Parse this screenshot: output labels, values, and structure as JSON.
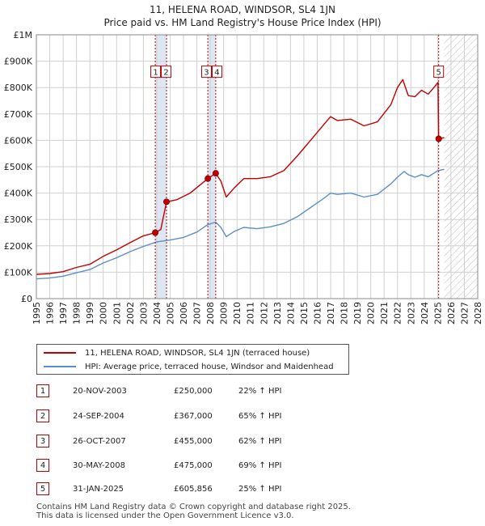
{
  "title_line1": "11, HELENA ROAD, WINDSOR, SL4 1JN",
  "title_line2": "Price paid vs. HM Land Registry's House Price Index (HPI)",
  "colors": {
    "property": "#c00000",
    "hpi": "#5b8fc7",
    "band": "#dde6f3",
    "marker": "#c00000"
  },
  "chart_data": {
    "type": "line",
    "title": "Price paid vs. HM Land Registry's House Price Index (HPI)",
    "xlabel": "",
    "ylabel": "",
    "xlim": [
      1995,
      2028
    ],
    "ylim": [
      0,
      1000000
    ],
    "y_ticks": [
      {
        "value": 0,
        "label": "£0"
      },
      {
        "value": 100000,
        "label": "£100K"
      },
      {
        "value": 200000,
        "label": "£200K"
      },
      {
        "value": 300000,
        "label": "£300K"
      },
      {
        "value": 400000,
        "label": "£400K"
      },
      {
        "value": 500000,
        "label": "£500K"
      },
      {
        "value": 600000,
        "label": "£600K"
      },
      {
        "value": 700000,
        "label": "£700K"
      },
      {
        "value": 800000,
        "label": "£800K"
      },
      {
        "value": 900000,
        "label": "£900K"
      },
      {
        "value": 1000000,
        "label": "£1M"
      }
    ],
    "x_ticks": [
      "1995",
      "1996",
      "1997",
      "1998",
      "1999",
      "2000",
      "2001",
      "2002",
      "2003",
      "2004",
      "2005",
      "2006",
      "2007",
      "2008",
      "2009",
      "2010",
      "2011",
      "2012",
      "2013",
      "2014",
      "2015",
      "2016",
      "2017",
      "2018",
      "2019",
      "2020",
      "2021",
      "2022",
      "2023",
      "2024",
      "2025",
      "2026",
      "2027",
      "2028"
    ],
    "grid": true,
    "forecast_hatch_from": 2025.5,
    "series": [
      {
        "name": "11, HELENA ROAD, WINDSOR, SL4 1JN (terraced house)",
        "points": [
          [
            1995.0,
            92000
          ],
          [
            1996.0,
            95000
          ],
          [
            1997.0,
            102000
          ],
          [
            1998.0,
            118000
          ],
          [
            1999.0,
            130000
          ],
          [
            2000.0,
            160000
          ],
          [
            2001.0,
            185000
          ],
          [
            2002.0,
            212000
          ],
          [
            2003.0,
            238000
          ],
          [
            2003.89,
            250000
          ],
          [
            2004.3,
            262000
          ],
          [
            2004.73,
            367000
          ],
          [
            2005.5,
            375000
          ],
          [
            2006.5,
            400000
          ],
          [
            2007.82,
            455000
          ],
          [
            2008.41,
            475000
          ],
          [
            2008.8,
            445000
          ],
          [
            2009.2,
            385000
          ],
          [
            2009.8,
            420000
          ],
          [
            2010.5,
            455000
          ],
          [
            2011.5,
            455000
          ],
          [
            2012.5,
            462000
          ],
          [
            2013.5,
            485000
          ],
          [
            2014.5,
            540000
          ],
          [
            2015.5,
            600000
          ],
          [
            2016.5,
            660000
          ],
          [
            2017.0,
            690000
          ],
          [
            2017.5,
            675000
          ],
          [
            2018.5,
            680000
          ],
          [
            2019.5,
            655000
          ],
          [
            2020.5,
            670000
          ],
          [
            2021.5,
            735000
          ],
          [
            2022.0,
            800000
          ],
          [
            2022.4,
            830000
          ],
          [
            2022.8,
            770000
          ],
          [
            2023.3,
            765000
          ],
          [
            2023.8,
            790000
          ],
          [
            2024.3,
            775000
          ],
          [
            2024.8,
            805000
          ],
          [
            2025.03,
            820000
          ],
          [
            2025.08,
            605856
          ],
          [
            2025.5,
            610000
          ]
        ]
      },
      {
        "name": "HPI: Average price, terraced house, Windsor and Maidenhead",
        "points": [
          [
            1995.0,
            75000
          ],
          [
            1996.0,
            78000
          ],
          [
            1997.0,
            85000
          ],
          [
            1998.0,
            98000
          ],
          [
            1999.0,
            110000
          ],
          [
            2000.0,
            135000
          ],
          [
            2001.0,
            155000
          ],
          [
            2002.0,
            178000
          ],
          [
            2003.0,
            198000
          ],
          [
            2004.0,
            215000
          ],
          [
            2005.0,
            222000
          ],
          [
            2006.0,
            232000
          ],
          [
            2007.0,
            252000
          ],
          [
            2007.8,
            280000
          ],
          [
            2008.4,
            290000
          ],
          [
            2008.8,
            270000
          ],
          [
            2009.2,
            235000
          ],
          [
            2009.8,
            255000
          ],
          [
            2010.5,
            270000
          ],
          [
            2011.5,
            265000
          ],
          [
            2012.5,
            272000
          ],
          [
            2013.5,
            285000
          ],
          [
            2014.5,
            310000
          ],
          [
            2015.5,
            345000
          ],
          [
            2016.5,
            380000
          ],
          [
            2017.0,
            400000
          ],
          [
            2017.5,
            395000
          ],
          [
            2018.5,
            400000
          ],
          [
            2019.5,
            385000
          ],
          [
            2020.5,
            395000
          ],
          [
            2021.5,
            435000
          ],
          [
            2022.0,
            460000
          ],
          [
            2022.5,
            482000
          ],
          [
            2022.8,
            470000
          ],
          [
            2023.3,
            460000
          ],
          [
            2023.8,
            470000
          ],
          [
            2024.3,
            462000
          ],
          [
            2024.8,
            478000
          ],
          [
            2025.0,
            485000
          ],
          [
            2025.5,
            490000
          ]
        ]
      }
    ],
    "sales": [
      {
        "id": "1",
        "x": 2003.89,
        "price": 250000
      },
      {
        "id": "2",
        "x": 2004.73,
        "price": 367000
      },
      {
        "id": "3",
        "x": 2007.82,
        "price": 455000
      },
      {
        "id": "4",
        "x": 2008.41,
        "price": 475000
      },
      {
        "id": "5",
        "x": 2025.08,
        "price": 605856
      }
    ],
    "sale_label_groups": [
      {
        "label_ids": [
          "1",
          "2"
        ],
        "x_ids": [
          "1",
          "2"
        ]
      },
      {
        "label_ids": [
          "3",
          "4"
        ],
        "x_ids": [
          "3",
          "4"
        ]
      },
      {
        "label_ids": [
          "5"
        ],
        "x_ids": [
          "5"
        ]
      }
    ],
    "sale_label_y": 860000
  },
  "legend": {
    "property_label": "11, HELENA ROAD, WINDSOR, SL4 1JN (terraced house)",
    "hpi_label": "HPI: Average price, terraced house, Windsor and Maidenhead"
  },
  "transactions": [
    {
      "num": "1",
      "date": "20-NOV-2003",
      "price": "£250,000",
      "hpi": "22% ↑ HPI"
    },
    {
      "num": "2",
      "date": "24-SEP-2004",
      "price": "£367,000",
      "hpi": "65% ↑ HPI"
    },
    {
      "num": "3",
      "date": "26-OCT-2007",
      "price": "£455,000",
      "hpi": "62% ↑ HPI"
    },
    {
      "num": "4",
      "date": "30-MAY-2008",
      "price": "£475,000",
      "hpi": "69% ↑ HPI"
    },
    {
      "num": "5",
      "date": "31-JAN-2025",
      "price": "£605,856",
      "hpi": "25% ↑ HPI"
    }
  ],
  "footer_line1": "Contains HM Land Registry data © Crown copyright and database right 2025.",
  "footer_line2": "This data is licensed under the Open Government Licence v3.0."
}
